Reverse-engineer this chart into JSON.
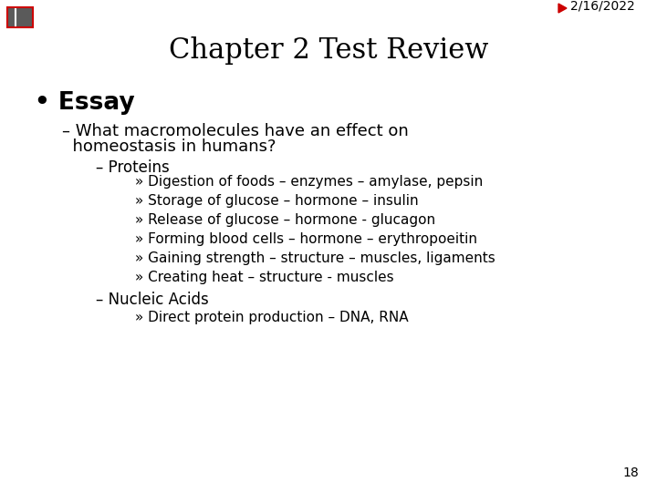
{
  "background_color": "#ffffff",
  "date_text": "2/16/2022",
  "date_color": "#000000",
  "arrow_color": "#cc0000",
  "title": "Chapter 2 Test Review",
  "title_fontsize": 22,
  "title_color": "#000000",
  "bullet1_text": "• Essay",
  "bullet1_fontsize": 19,
  "sub1_line1": "– What macromolecules have an effect on",
  "sub1_line2": "  homeostasis in humans?",
  "sub1_fontsize": 13,
  "sub2": "– Proteins",
  "sub2_fontsize": 12,
  "sub2b": "– Nucleic Acids",
  "sub2b_fontsize": 12,
  "bullet_items": [
    "» Digestion of foods – enzymes – amylase, pepsin",
    "» Storage of glucose – hormone – insulin",
    "» Release of glucose – hormone - glucagon",
    "» Forming blood cells – hormone – erythropoeitin",
    "» Gaining strength – structure – muscles, ligaments",
    "» Creating heat – structure - muscles"
  ],
  "bullet_items_fontsize": 11,
  "nucleic_item": "» Direct protein production – DNA, RNA",
  "nucleic_item_fontsize": 11,
  "page_number": "18",
  "page_number_fontsize": 10,
  "icon_color": "#5a5a5a",
  "icon_border_color": "#cc0000"
}
